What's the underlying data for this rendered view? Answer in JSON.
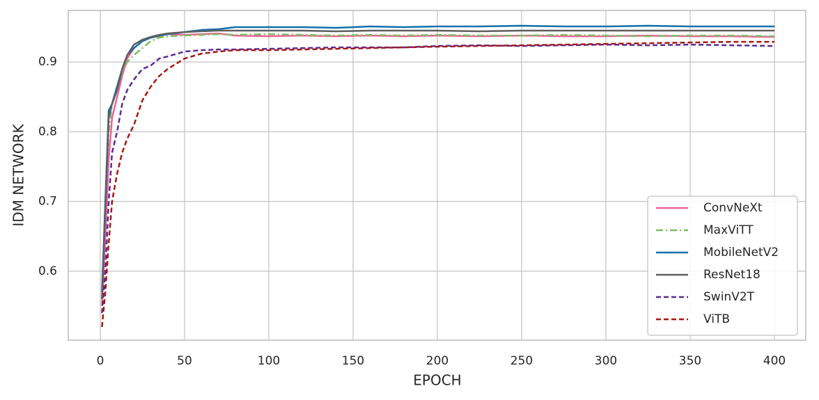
{
  "chart_data": {
    "type": "line",
    "xlabel": "EPOCH",
    "ylabel": "IDM NETWORK",
    "x": [
      1,
      3,
      5,
      7,
      10,
      13,
      16,
      20,
      25,
      30,
      35,
      40,
      50,
      60,
      70,
      80,
      100,
      120,
      140,
      160,
      180,
      200,
      225,
      250,
      275,
      300,
      325,
      350,
      375,
      400
    ],
    "series": [
      {
        "name": "ConvNeXt",
        "color": "#f0609a",
        "linestyle": "solid",
        "values": [
          0.55,
          0.65,
          0.76,
          0.82,
          0.85,
          0.88,
          0.905,
          0.92,
          0.93,
          0.935,
          0.937,
          0.94,
          0.939,
          0.94,
          0.941,
          0.938,
          0.937,
          0.938,
          0.937,
          0.938,
          0.937,
          0.938,
          0.937,
          0.938,
          0.937,
          0.937,
          0.938,
          0.937,
          0.937,
          0.936
        ]
      },
      {
        "name": "MaxViTT",
        "color": "#7bbf5e",
        "linestyle": "dashdot",
        "values": [
          0.56,
          0.7,
          0.8,
          0.84,
          0.86,
          0.885,
          0.9,
          0.91,
          0.92,
          0.93,
          0.935,
          0.937,
          0.938,
          0.939,
          0.94,
          0.939,
          0.94,
          0.939,
          0.938,
          0.939,
          0.938,
          0.939,
          0.938,
          0.938,
          0.939,
          0.938,
          0.937,
          0.938,
          0.938,
          0.937
        ]
      },
      {
        "name": "MobileNetV2",
        "color": "#1170aa",
        "linestyle": "solid",
        "values": [
          0.57,
          0.7,
          0.83,
          0.84,
          0.865,
          0.89,
          0.91,
          0.92,
          0.93,
          0.935,
          0.938,
          0.94,
          0.943,
          0.946,
          0.947,
          0.95,
          0.95,
          0.95,
          0.949,
          0.951,
          0.95,
          0.951,
          0.951,
          0.952,
          0.951,
          0.951,
          0.952,
          0.951,
          0.951,
          0.951
        ]
      },
      {
        "name": "ResNet18",
        "color": "#5f5f5f",
        "linestyle": "solid",
        "values": [
          0.56,
          0.69,
          0.82,
          0.84,
          0.86,
          0.89,
          0.91,
          0.925,
          0.932,
          0.936,
          0.939,
          0.941,
          0.943,
          0.944,
          0.945,
          0.945,
          0.945,
          0.945,
          0.944,
          0.945,
          0.945,
          0.945,
          0.944,
          0.945,
          0.945,
          0.945,
          0.945,
          0.945,
          0.945,
          0.945
        ]
      },
      {
        "name": "SwinV2T",
        "color": "#5b2a96",
        "linestyle": "dashed",
        "values": [
          0.54,
          0.6,
          0.7,
          0.77,
          0.8,
          0.84,
          0.86,
          0.875,
          0.89,
          0.895,
          0.905,
          0.908,
          0.915,
          0.917,
          0.918,
          0.918,
          0.919,
          0.92,
          0.921,
          0.921,
          0.921,
          0.923,
          0.924,
          0.923,
          0.924,
          0.925,
          0.924,
          0.925,
          0.924,
          0.923
        ]
      },
      {
        "name": "ViTB",
        "color": "#a8170f",
        "linestyle": "dashed",
        "values": [
          0.52,
          0.57,
          0.64,
          0.7,
          0.74,
          0.77,
          0.79,
          0.81,
          0.845,
          0.865,
          0.88,
          0.89,
          0.905,
          0.912,
          0.915,
          0.917,
          0.917,
          0.918,
          0.919,
          0.92,
          0.921,
          0.922,
          0.923,
          0.924,
          0.925,
          0.926,
          0.927,
          0.928,
          0.929,
          0.929
        ]
      }
    ],
    "xlim": [
      -19.0,
      418.6
    ],
    "ylim": [
      0.501,
      0.974
    ],
    "xticks": [
      0,
      50,
      100,
      150,
      200,
      250,
      300,
      350,
      400
    ],
    "yticks": [
      0.6,
      0.7,
      0.8,
      0.9
    ],
    "grid": true,
    "legend": "lower right"
  }
}
